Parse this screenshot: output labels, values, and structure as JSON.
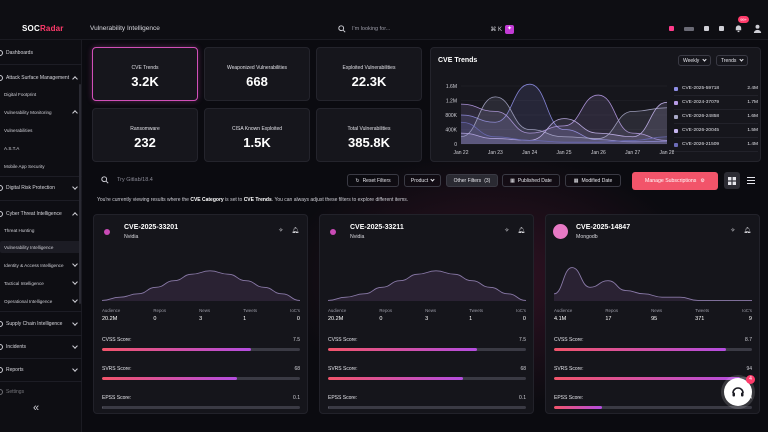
{
  "app": {
    "logo_prefix": "SOC",
    "logo_suffix": "Radar",
    "page_title": "Vulnerability Intelligence"
  },
  "search": {
    "placeholder": "I'm looking for...",
    "shortcut": "⌘ K",
    "ai_label": "✦"
  },
  "topbar": {
    "notification_badge": "99+"
  },
  "sidebar": {
    "items": [
      {
        "label": "Dashboards",
        "level": 0
      },
      {
        "label": "Attack Surface Management",
        "level": 0
      },
      {
        "label": "Digital Footprint",
        "level": 1
      },
      {
        "label": "Vulnerability Monitoring",
        "level": 1
      },
      {
        "label": "Vulnerabilities",
        "level": 2
      },
      {
        "label": "A.S.T.A",
        "level": 2
      },
      {
        "label": "Mobile App Security",
        "level": 2
      },
      {
        "label": "Digital Risk Protection",
        "level": 0
      },
      {
        "label": "Cyber Threat Intelligence",
        "level": 0
      },
      {
        "label": "Threat Hunting",
        "level": 1
      },
      {
        "label": "Vulnerability Intelligence",
        "level": 1
      },
      {
        "label": "Identity & Access Intelligence",
        "level": 1
      },
      {
        "label": "Tactical Intelligence",
        "level": 1
      },
      {
        "label": "Operational Intelligence",
        "level": 1
      },
      {
        "label": "Supply Chain Intelligence",
        "level": 0
      },
      {
        "label": "Incidents",
        "level": 0
      },
      {
        "label": "Reports",
        "level": 0
      },
      {
        "label": "Settings",
        "level": 0
      }
    ],
    "collapse_label": "«"
  },
  "stats": [
    {
      "label": "CVE Trends",
      "value": "3.2K",
      "active": true
    },
    {
      "label": "Weaponized Vulnerabilities",
      "value": "668"
    },
    {
      "label": "Exploited Vulnerabilities",
      "value": "22.3K"
    },
    {
      "label": "Ransomware",
      "value": "232"
    },
    {
      "label": "CISA Known Exploited",
      "value": "1.5K"
    },
    {
      "label": "Total Vulnerabilities",
      "value": "385.8K"
    }
  ],
  "trend_chart": {
    "title": "CVE Trends",
    "period_select": "Weekly",
    "mode_select": "Trends",
    "legend": [
      {
        "name": "CVE-2025-59718",
        "value": "2.4M"
      },
      {
        "name": "CVE-2024-37079",
        "value": "1.7M"
      },
      {
        "name": "CVE-2026-24858",
        "value": "1.6M"
      },
      {
        "name": "CVE-2026-20045",
        "value": "1.5M"
      },
      {
        "name": "CVE-2026-21509",
        "value": "1.4M"
      }
    ]
  },
  "chart_data": {
    "type": "area",
    "x": [
      "Jan 22",
      "Jan 23",
      "Jan 24",
      "Jan 25",
      "Jan 26",
      "Jan 27",
      "Jan 28"
    ],
    "y_ticks": [
      "0",
      "400K",
      "800K",
      "1.2M",
      "1.6M"
    ],
    "ylim": [
      0,
      1600000
    ],
    "series": [
      {
        "name": "CVE-2025-59718",
        "values": [
          800000,
          600000,
          1650000,
          400000,
          120000,
          60000,
          80000
        ]
      },
      {
        "name": "CVE-2024-37079",
        "values": [
          1100000,
          900000,
          300000,
          500000,
          1350000,
          300000,
          100000
        ]
      },
      {
        "name": "CVE-2026-24858",
        "values": [
          200000,
          1300000,
          400000,
          200000,
          150000,
          900000,
          1000000
        ]
      },
      {
        "name": "CVE-2026-20045",
        "values": [
          300000,
          150000,
          100000,
          700000,
          300000,
          200000,
          1150000
        ]
      },
      {
        "name": "CVE-2026-21509",
        "values": [
          600000,
          200000,
          100000,
          50000,
          50000,
          100000,
          200000
        ]
      }
    ],
    "colors": [
      "#8e8ee6",
      "#b79be6",
      "#a9a9c8",
      "#c7b6f0",
      "#6c6cb8"
    ]
  },
  "filters": {
    "search_placeholder": "Try Gitlab/18.4",
    "reset_label": "Reset Filters",
    "product_label": "Product",
    "other_filters_label": "Other Filters",
    "other_filters_count": "(3)",
    "published_date_label": "Published Date",
    "modified_date_label": "Modified Date",
    "manage_label": "Manage Subscriptions"
  },
  "info": {
    "prefix": "You're currently viewing results where the",
    "category": "CVE Category",
    "middle": "is set to",
    "value": "CVE Trends",
    "suffix": ". You can always adjust these filters to explore different items."
  },
  "cve_cards": [
    {
      "id": "CVE-2025-33201",
      "vendor": "Nvidia",
      "metrics": [
        {
          "label": "Audience",
          "value": "20.2M"
        },
        {
          "label": "Repos",
          "value": "0"
        },
        {
          "label": "News",
          "value": "3"
        },
        {
          "label": "Tweets",
          "value": "1"
        },
        {
          "label": "IoC's",
          "value": "0"
        }
      ],
      "cvss_label": "CVSS Score:",
      "cvss": "7.5",
      "cvss_pct": 0.75,
      "svrs_label": "SVRS Score:",
      "svrs": "68",
      "svrs_pct": 0.68,
      "epss_label": "EPSS Score:",
      "epss": "0.1",
      "epss_pct": 0.001,
      "spark": [
        12,
        11,
        10,
        8,
        6,
        4,
        3,
        4,
        6,
        8,
        10,
        12
      ]
    },
    {
      "id": "CVE-2025-33211",
      "vendor": "Nvidia",
      "metrics": [
        {
          "label": "Audience",
          "value": "20.2M"
        },
        {
          "label": "Repos",
          "value": "0"
        },
        {
          "label": "News",
          "value": "3"
        },
        {
          "label": "Tweets",
          "value": "1"
        },
        {
          "label": "IoC's",
          "value": "0"
        }
      ],
      "cvss_label": "CVSS Score:",
      "cvss": "7.5",
      "cvss_pct": 0.75,
      "svrs_label": "SVRS Score:",
      "svrs": "68",
      "svrs_pct": 0.68,
      "epss_label": "EPSS Score:",
      "epss": "0.1",
      "epss_pct": 0.001,
      "spark": [
        12,
        11,
        10,
        8,
        6,
        4,
        3,
        4,
        6,
        8,
        10,
        12
      ]
    },
    {
      "id": "CVE-2025-14847",
      "vendor": "Mongodb",
      "metrics": [
        {
          "label": "Audience",
          "value": "4.1M"
        },
        {
          "label": "Repos",
          "value": "17"
        },
        {
          "label": "News",
          "value": "95"
        },
        {
          "label": "Tweets",
          "value": "371"
        },
        {
          "label": "IoC's",
          "value": "9"
        }
      ],
      "cvss_label": "CVSS Score:",
      "cvss": "8.7",
      "cvss_pct": 0.87,
      "svrs_label": "SVRS Score:",
      "svrs": "94",
      "svrs_pct": 0.94,
      "epss_label": "EPSS Score:",
      "epss": "24",
      "epss_pct": 0.24,
      "spark": [
        10,
        2,
        8,
        6,
        9,
        10,
        11,
        11,
        12,
        12,
        12,
        12
      ]
    }
  ],
  "support": {
    "badge": "4"
  },
  "colors": {
    "accent": "#f2546a",
    "brand_pink": "#ff3b6b",
    "active_border": "#d14fb8"
  }
}
